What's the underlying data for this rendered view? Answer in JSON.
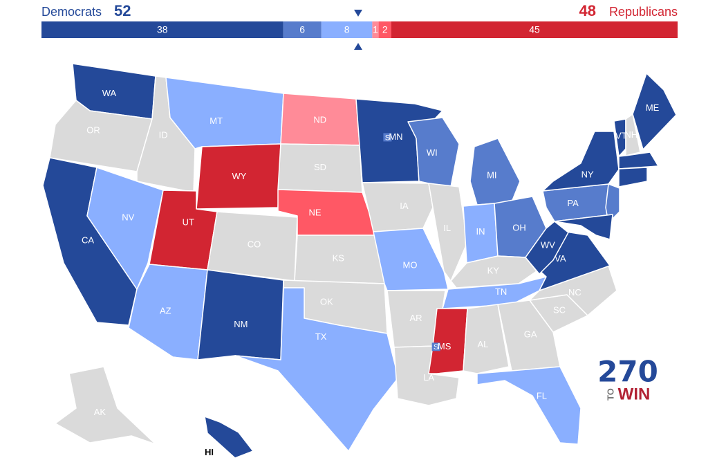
{
  "header": {
    "left_name": "Democrats",
    "left_total": 52,
    "right_total": 48,
    "right_name": "Republicans"
  },
  "bar": {
    "segments": [
      {
        "value": 38,
        "color": "#244999"
      },
      {
        "value": 6,
        "color": "#577ccc"
      },
      {
        "value": 8,
        "color": "#8aafff"
      },
      {
        "value": 1,
        "color": "#ff8b98"
      },
      {
        "value": 2,
        "color": "#ff5865"
      },
      {
        "value": 45,
        "color": "#d22532"
      }
    ]
  },
  "states": [
    {
      "label": "WA",
      "color": "#244999"
    },
    {
      "label": "OR",
      "color": "#dadada"
    },
    {
      "label": "CA",
      "color": "#244999"
    },
    {
      "label": "ID",
      "color": "#dadada"
    },
    {
      "label": "NV",
      "color": "#8aafff"
    },
    {
      "label": "MT",
      "color": "#8aafff"
    },
    {
      "label": "WY",
      "color": "#d22532"
    },
    {
      "label": "UT",
      "color": "#d22532"
    },
    {
      "label": "AZ",
      "color": "#8aafff"
    },
    {
      "label": "CO",
      "color": "#dadada"
    },
    {
      "label": "NM",
      "color": "#244999"
    },
    {
      "label": "ND",
      "color": "#ff8b98"
    },
    {
      "label": "SD",
      "color": "#dadada"
    },
    {
      "label": "NE",
      "color": "#ff5865"
    },
    {
      "label": "KS",
      "color": "#dadada"
    },
    {
      "label": "OK",
      "color": "#dadada"
    },
    {
      "label": "TX",
      "color": "#8aafff"
    },
    {
      "label": "MN",
      "color": "#244999",
      "marker": "S"
    },
    {
      "label": "IA",
      "color": "#dadada"
    },
    {
      "label": "MO",
      "color": "#8aafff"
    },
    {
      "label": "AR",
      "color": "#dadada"
    },
    {
      "label": "LA",
      "color": "#dadada"
    },
    {
      "label": "WI",
      "color": "#577ccc"
    },
    {
      "label": "IL",
      "color": "#dadada"
    },
    {
      "label": "MI",
      "color": "#577ccc"
    },
    {
      "label": "IN",
      "color": "#8aafff"
    },
    {
      "label": "OH",
      "color": "#577ccc"
    },
    {
      "label": "KY",
      "color": "#dadada"
    },
    {
      "label": "TN",
      "color": "#8aafff"
    },
    {
      "label": "MS",
      "color": "#d22532",
      "marker": "S"
    },
    {
      "label": "AL",
      "color": "#dadada"
    },
    {
      "label": "GA",
      "color": "#dadada"
    },
    {
      "label": "FL",
      "color": "#8aafff"
    },
    {
      "label": "SC",
      "color": "#dadada"
    },
    {
      "label": "NC",
      "color": "#dadada"
    },
    {
      "label": "VA",
      "color": "#244999"
    },
    {
      "label": "WV",
      "color": "#244999"
    },
    {
      "label": "PA",
      "color": "#577ccc"
    },
    {
      "label": "NY",
      "color": "#244999"
    },
    {
      "color": "#577ccc"
    },
    {
      "color": "#244999"
    },
    {
      "label": "VT",
      "color": "#244999"
    },
    {
      "label": "NH",
      "color": "#dadada"
    },
    {
      "label": "ME",
      "color": "#244999"
    },
    {
      "color": "#244999"
    },
    {
      "color": "#244999"
    },
    {
      "label": "AK",
      "color": "#dadada"
    },
    {
      "label": "HI",
      "color": "#244999"
    }
  ],
  "logo": {
    "number": "270",
    "to": "TO",
    "win": "WIN"
  }
}
